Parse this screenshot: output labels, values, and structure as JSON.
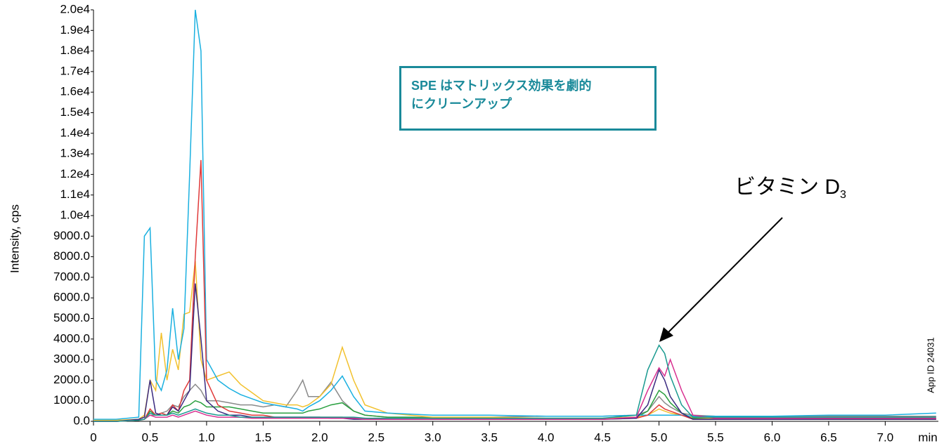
{
  "chart_data": {
    "type": "line",
    "y_label": "Intensity, cps",
    "x_unit_label": "min",
    "annotation_box": [
      "SPE はマトリックス効果を劇的",
      "にクリーンアップ"
    ],
    "arrow_annotation": {
      "text": "ビタミン D",
      "subscript": "3"
    },
    "side_note": "App ID 24031",
    "xlim": [
      0,
      7.47
    ],
    "ylim": [
      0,
      20000
    ],
    "xticks": [
      0,
      0.5,
      {
        "value": 1,
        "label": "1.0"
      },
      1.5,
      {
        "value": 2,
        "label": "2.0"
      },
      2.5,
      {
        "value": 3,
        "label": "3.0"
      },
      3.5,
      {
        "value": 4,
        "label": "4.0"
      },
      4.5,
      {
        "value": 5,
        "label": "5.0"
      },
      5.5,
      {
        "value": 6,
        "label": "6.0"
      },
      6.5,
      {
        "value": 7,
        "label": "7.0"
      }
    ],
    "yticks": [
      {
        "value": 0,
        "label": "0.0"
      },
      {
        "value": 1000,
        "label": "1000.0"
      },
      {
        "value": 2000,
        "label": "2000.0"
      },
      {
        "value": 3000,
        "label": "3000.0"
      },
      {
        "value": 4000,
        "label": "4000.0"
      },
      {
        "value": 5000,
        "label": "5000.0"
      },
      {
        "value": 6000,
        "label": "6000.0"
      },
      {
        "value": 7000,
        "label": "7000.0"
      },
      {
        "value": 8000,
        "label": "8000.0"
      },
      {
        "value": 9000,
        "label": "9000.0"
      },
      {
        "value": 10000,
        "label": "1.0e4"
      },
      {
        "value": 11000,
        "label": "1.1e4"
      },
      {
        "value": 12000,
        "label": "1.2e4"
      },
      {
        "value": 13000,
        "label": "1.3e4"
      },
      {
        "value": 14000,
        "label": "1.4e4"
      },
      {
        "value": 15000,
        "label": "1.5e4"
      },
      {
        "value": 16000,
        "label": "1.6e4"
      },
      {
        "value": 17000,
        "label": "1.7e4"
      },
      {
        "value": 18000,
        "label": "1.8e4"
      },
      {
        "value": 19000,
        "label": "1.9e4"
      },
      {
        "value": 20000,
        "label": "2.0e4"
      }
    ],
    "x": [
      0,
      0.2,
      0.4,
      0.45,
      0.5,
      0.55,
      0.6,
      0.65,
      0.7,
      0.75,
      0.8,
      0.85,
      0.9,
      0.95,
      1.0,
      1.1,
      1.2,
      1.3,
      1.4,
      1.5,
      1.6,
      1.7,
      1.8,
      1.85,
      1.9,
      2.0,
      2.1,
      2.2,
      2.3,
      2.4,
      2.6,
      2.8,
      3.0,
      3.5,
      4.0,
      4.5,
      4.8,
      4.9,
      5.0,
      5.05,
      5.1,
      5.2,
      5.3,
      5.5,
      6.0,
      6.5,
      7.0,
      7.45
    ],
    "series": [
      {
        "color": "#8a8a8a",
        "values": [
          0,
          0,
          50,
          100,
          300,
          300,
          400,
          500,
          800,
          700,
          1200,
          1500,
          1800,
          1500,
          1000,
          1000,
          900,
          800,
          800,
          700,
          800,
          700,
          1500,
          2000,
          1200,
          1200,
          1900,
          1000,
          500,
          300,
          200,
          200,
          200,
          200,
          250,
          250,
          300,
          500,
          1200,
          900,
          700,
          400,
          300,
          250,
          250,
          250,
          250,
          250
        ]
      },
      {
        "color": "#2aa040",
        "values": [
          0,
          0,
          50,
          100,
          500,
          300,
          300,
          300,
          500,
          400,
          700,
          800,
          1000,
          900,
          700,
          700,
          700,
          600,
          500,
          400,
          400,
          400,
          400,
          400,
          500,
          600,
          800,
          900,
          500,
          300,
          200,
          200,
          150,
          150,
          150,
          150,
          200,
          500,
          1500,
          1300,
          900,
          400,
          150,
          150,
          150,
          150,
          150,
          150
        ]
      },
      {
        "color": "#f2c12e",
        "values": [
          50,
          50,
          100,
          300,
          2000,
          1500,
          4300,
          2000,
          3500,
          2500,
          5200,
          5300,
          7800,
          3000,
          2000,
          2200,
          2400,
          1800,
          1400,
          1000,
          900,
          800,
          800,
          700,
          800,
          1200,
          1800,
          3600,
          2000,
          800,
          400,
          300,
          200,
          200,
          150,
          150,
          200,
          300,
          600,
          500,
          400,
          300,
          200,
          150,
          150,
          150,
          150,
          150
        ]
      },
      {
        "color": "#1ab0e0",
        "values": [
          100,
          100,
          200,
          9000,
          9400,
          2000,
          1500,
          2500,
          5500,
          3000,
          4500,
          12000,
          20000,
          18000,
          3000,
          2000,
          1600,
          1300,
          1100,
          900,
          800,
          700,
          600,
          500,
          700,
          1000,
          1500,
          2200,
          1200,
          500,
          400,
          350,
          300,
          300,
          250,
          250,
          300,
          300,
          300,
          300,
          300,
          300,
          250,
          250,
          250,
          300,
          300,
          400
        ]
      },
      {
        "color": "#e03a3a",
        "values": [
          0,
          0,
          50,
          100,
          600,
          300,
          400,
          300,
          800,
          500,
          1500,
          2000,
          8000,
          12700,
          2000,
          800,
          500,
          400,
          300,
          300,
          200,
          200,
          200,
          200,
          200,
          200,
          200,
          200,
          150,
          150,
          100,
          100,
          100,
          100,
          100,
          100,
          150,
          300,
          800,
          600,
          500,
          300,
          100,
          100,
          100,
          100,
          100,
          100
        ]
      },
      {
        "color": "#3a2a80",
        "values": [
          0,
          0,
          100,
          200,
          2000,
          400,
          300,
          300,
          700,
          500,
          1000,
          1500,
          6700,
          4000,
          1000,
          500,
          300,
          300,
          200,
          200,
          200,
          200,
          200,
          200,
          200,
          200,
          150,
          150,
          100,
          100,
          100,
          100,
          100,
          100,
          100,
          100,
          150,
          800,
          2500,
          2000,
          1200,
          400,
          100,
          100,
          100,
          100,
          100,
          100
        ]
      },
      {
        "color": "#d83090",
        "values": [
          0,
          0,
          50,
          100,
          300,
          200,
          200,
          200,
          300,
          200,
          300,
          400,
          500,
          400,
          300,
          200,
          200,
          200,
          150,
          150,
          150,
          150,
          150,
          150,
          150,
          150,
          150,
          150,
          150,
          100,
          100,
          100,
          100,
          100,
          100,
          100,
          200,
          1500,
          2600,
          2200,
          3000,
          1500,
          300,
          150,
          150,
          150,
          150,
          150
        ]
      },
      {
        "color": "#1a9a90",
        "values": [
          0,
          0,
          50,
          100,
          400,
          300,
          300,
          300,
          400,
          300,
          400,
          500,
          600,
          500,
          400,
          300,
          300,
          200,
          200,
          200,
          200,
          200,
          200,
          200,
          200,
          200,
          200,
          200,
          200,
          150,
          150,
          150,
          150,
          150,
          150,
          150,
          300,
          2500,
          3700,
          3300,
          2200,
          800,
          200,
          200,
          200,
          200,
          200,
          200
        ]
      }
    ]
  }
}
